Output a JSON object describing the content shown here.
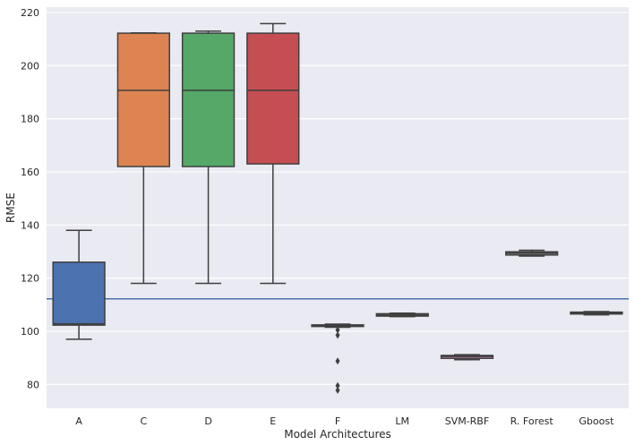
{
  "chart_data": {
    "type": "box",
    "title": "",
    "xlabel": "Model Architectures",
    "ylabel": "RMSE",
    "ylim": [
      71,
      222
    ],
    "yticks": [
      80,
      100,
      120,
      140,
      160,
      180,
      200,
      220
    ],
    "grid": true,
    "reference_line": {
      "y": 112.2,
      "color": "#4c72b0"
    },
    "categories": [
      "A",
      "C",
      "D",
      "E",
      "F",
      "LM",
      "SVM-RBF",
      "R. Forest",
      "Gboost"
    ],
    "boxes": [
      {
        "name": "A",
        "whislo": 97,
        "q1": 102.3,
        "med": 102.8,
        "q3": 126,
        "whishi": 138,
        "fliers": [],
        "color": "#4c72b0"
      },
      {
        "name": "C",
        "whislo": 118,
        "q1": 162,
        "med": 190.7,
        "q3": 212.2,
        "whishi": 212.3,
        "fliers": [],
        "color": "#dd8452"
      },
      {
        "name": "D",
        "whislo": 118,
        "q1": 162,
        "med": 190.7,
        "q3": 212.2,
        "whishi": 213,
        "fliers": [],
        "color": "#55a868"
      },
      {
        "name": "E",
        "whislo": 118,
        "q1": 163,
        "med": 190.7,
        "q3": 212.2,
        "whishi": 215.8,
        "fliers": [],
        "color": "#c44e52"
      },
      {
        "name": "F",
        "whislo": 101.5,
        "q1": 101.8,
        "med": 102.2,
        "q3": 102.4,
        "whishi": 102.7,
        "fliers": [
          100.5,
          98.5,
          88.8,
          79.5,
          77.8
        ],
        "color": "#8172b3"
      },
      {
        "name": "LM",
        "whislo": 105.5,
        "q1": 105.7,
        "med": 106.1,
        "q3": 106.6,
        "whishi": 106.8,
        "fliers": [],
        "color": "#937860"
      },
      {
        "name": "SVM-RBF",
        "whislo": 89.3,
        "q1": 89.8,
        "med": 90.5,
        "q3": 90.9,
        "whishi": 91.2,
        "fliers": [],
        "color": "#da8bc3"
      },
      {
        "name": "R. Forest",
        "whislo": 128.3,
        "q1": 128.7,
        "med": 129.4,
        "q3": 129.9,
        "whishi": 130.5,
        "fliers": [],
        "color": "#8c8c8c"
      },
      {
        "name": "Gboost",
        "whislo": 106.2,
        "q1": 106.5,
        "med": 106.9,
        "q3": 107.2,
        "whishi": 107.4,
        "fliers": [],
        "color": "#ccb974"
      }
    ]
  }
}
